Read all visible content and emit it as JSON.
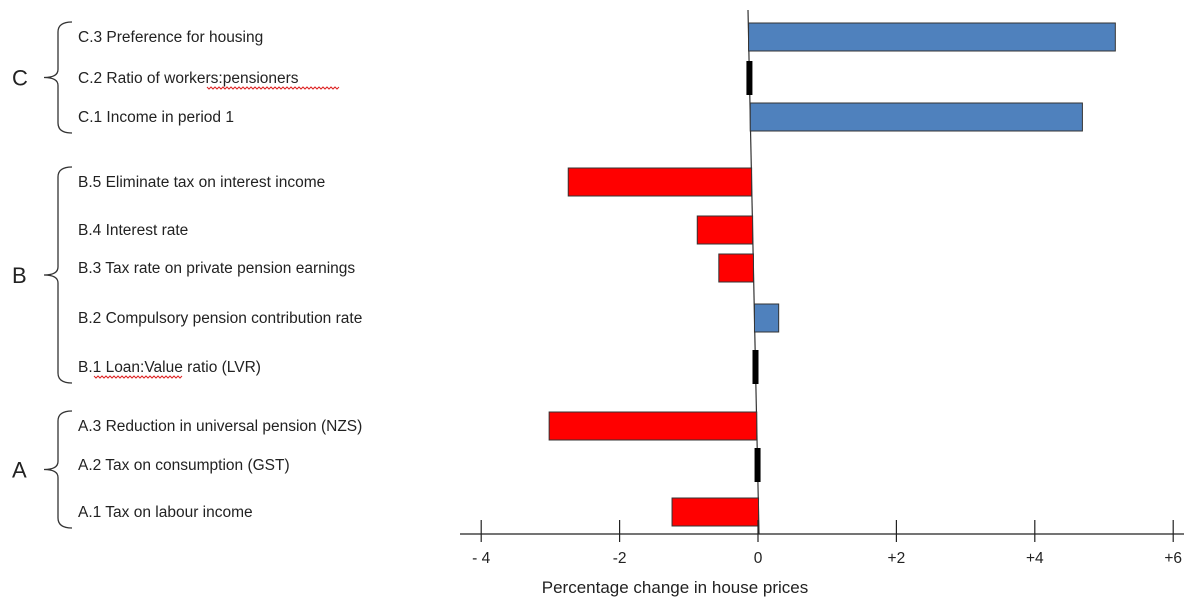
{
  "chart_data": {
    "type": "bar",
    "orientation": "horizontal",
    "xlabel": "Percentage change in house prices",
    "xlim": [
      -4.4,
      6.1
    ],
    "ticks": [
      {
        "value": -4,
        "label": "- 4"
      },
      {
        "value": -2,
        "label": "-2"
      },
      {
        "value": 0,
        "label": "0"
      },
      {
        "value": 2,
        "label": "+2"
      },
      {
        "value": 4,
        "label": "+4"
      },
      {
        "value": 6,
        "label": "+6"
      }
    ],
    "colors": {
      "positive": "#4F81BD",
      "negative": "#FF0000",
      "near_zero": "#000000",
      "outline": "#333333"
    },
    "groups": [
      {
        "label": "C",
        "first": 0,
        "last": 2
      },
      {
        "label": "B",
        "first": 3,
        "last": 7
      },
      {
        "label": "A",
        "first": 8,
        "last": 10
      }
    ],
    "categories": [
      "C.3 Preference for housing",
      "C.2 Ratio of workers:pensioners",
      "C.1 Income in period 1",
      "B.5  Eliminate tax on interest income",
      "B.4 Interest rate",
      "B.3 Tax rate on private pension earnings",
      "B.2 Compulsory pension contribution rate",
      "B.1 Loan:Value ratio (LVR)",
      "A.3 Reduction in universal pension (NZS)",
      "A.2 Tax on consumption (GST)",
      "A.1 Tax on labour income"
    ],
    "values": [
      5.3,
      0,
      4.8,
      -2.65,
      -0.8,
      -0.5,
      0.35,
      0,
      -3.0,
      0,
      -1.25
    ]
  }
}
